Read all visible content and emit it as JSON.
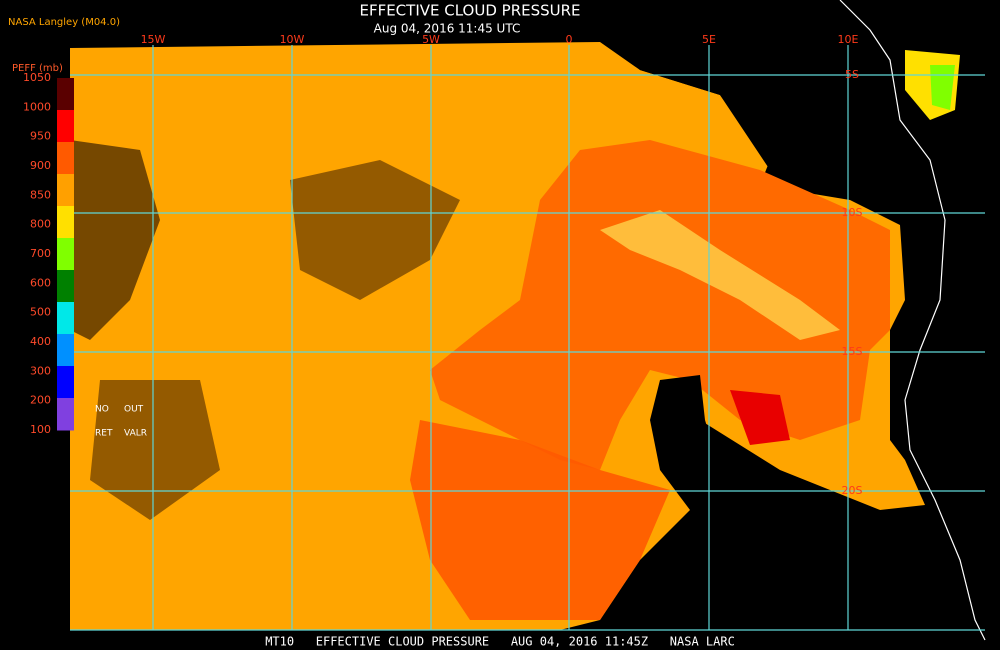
{
  "header": {
    "title": "EFFECTIVE CLOUD PRESSURE",
    "subtitle": "Aug 04, 2016 11:45 UTC",
    "source": "NASA Langley (M04.0)"
  },
  "grid": {
    "lon_labels": [
      "15W",
      "10W",
      "5W",
      "0",
      "5E",
      "10E"
    ],
    "lat_labels": [
      "5S",
      "10S",
      "15S",
      "20S"
    ]
  },
  "legend": {
    "title": "PEFF (mb)",
    "ticks": [
      "1050",
      "1000",
      "950",
      "900",
      "850",
      "800",
      "700",
      "600",
      "500",
      "400",
      "300",
      "200",
      "100"
    ],
    "colors": [
      "#5a0000",
      "#ff0000",
      "#ff5a00",
      "#ffa000",
      "#ffe000",
      "#80ff00",
      "#008000",
      "#00e8e8",
      "#0090ff",
      "#0000ff",
      "#8040e0"
    ],
    "notes": [
      "NO",
      "OUT",
      "RET",
      "VALR"
    ]
  },
  "footer": "MT10   EFFECTIVE CLOUD PRESSURE   AUG 04, 2016 11:45Z   NASA LARC"
}
